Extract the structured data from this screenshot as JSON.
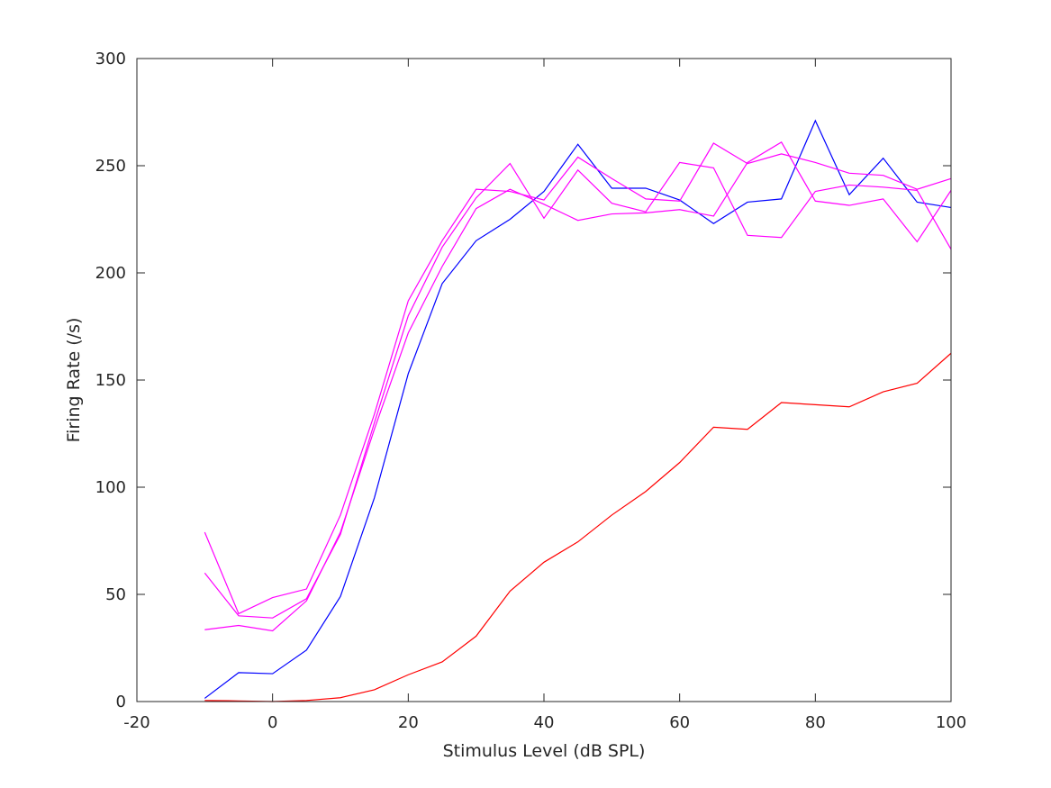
{
  "chart_data": {
    "type": "line",
    "title": "",
    "xlabel": "Stimulus Level (dB SPL)",
    "ylabel": "Firing Rate (/s)",
    "xlim": [
      -20,
      100
    ],
    "ylim": [
      0,
      300
    ],
    "xticks": [
      -20,
      0,
      20,
      40,
      60,
      80,
      100
    ],
    "yticks": [
      0,
      50,
      100,
      150,
      200,
      250,
      300
    ],
    "grid": false,
    "legend": "none",
    "x": [
      -10,
      -5,
      0,
      5,
      10,
      15,
      20,
      25,
      30,
      35,
      40,
      45,
      50,
      55,
      60,
      65,
      70,
      75,
      80,
      85,
      90,
      95,
      100
    ],
    "series": [
      {
        "color": "#0000ff",
        "values": [
          1.5,
          13.5,
          13,
          24,
          49,
          95,
          153,
          195,
          215,
          225,
          238,
          260,
          239.5,
          239.5,
          234,
          223,
          233,
          234.5,
          271,
          236.5,
          253.5,
          233,
          230.5
        ]
      },
      {
        "color": "#ff00ff",
        "values": [
          79,
          41,
          48.5,
          52.5,
          87,
          134,
          187,
          215,
          239,
          238,
          234,
          254,
          244,
          234.5,
          233.5,
          260.5,
          251,
          255.5,
          251.5,
          246.5,
          245.5,
          239,
          244
        ]
      },
      {
        "color": "#ff00ff",
        "values": [
          60,
          40,
          39,
          48,
          78,
          130,
          180,
          212,
          235,
          251,
          225.5,
          248,
          232.5,
          228.5,
          251.5,
          249,
          217.5,
          216.5,
          238,
          241,
          240,
          238.5,
          211
        ]
      },
      {
        "color": "#ff00ff",
        "values": [
          33.5,
          35.5,
          33,
          47,
          79,
          127,
          172,
          203,
          230,
          239,
          232,
          224.5,
          227.5,
          228,
          229.5,
          226.5,
          251.5,
          261,
          233.5,
          231.5,
          234.5,
          214.5,
          238.5
        ]
      },
      {
        "color": "#ff0000",
        "values": [
          0.5,
          0.3,
          0,
          0.5,
          1.8,
          5.5,
          12.5,
          18.5,
          30.5,
          51.5,
          65,
          74.5,
          87,
          98,
          111.5,
          128,
          127,
          139.5,
          138.5,
          137.5,
          144.5,
          148.5,
          162.5
        ]
      }
    ]
  }
}
